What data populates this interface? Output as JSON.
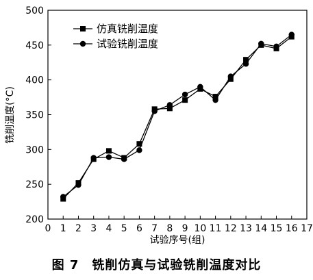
{
  "chart_data": {
    "type": "line",
    "title": "",
    "xlabel": "试验序号(组)",
    "ylabel": "铣削温度(°C)",
    "xlim": [
      0,
      17
    ],
    "ylim": [
      200,
      500
    ],
    "xticks": [
      0,
      1,
      2,
      3,
      4,
      5,
      6,
      7,
      8,
      9,
      10,
      11,
      12,
      13,
      14,
      15,
      16,
      17
    ],
    "yticks": [
      200,
      250,
      300,
      350,
      400,
      450,
      500
    ],
    "legend_position": "top-left",
    "x": [
      1,
      2,
      3,
      4,
      5,
      6,
      7,
      8,
      9,
      10,
      11,
      12,
      13,
      14,
      15,
      16
    ],
    "series": [
      {
        "name": "仿真铣削温度",
        "marker": "square",
        "values": [
          229,
          252,
          286,
          298,
          288,
          308,
          358,
          359,
          371,
          387,
          376,
          401,
          429,
          450,
          445,
          462
        ]
      },
      {
        "name": "试验铣削温度",
        "marker": "circle",
        "values": [
          232,
          249,
          288,
          289,
          286,
          299,
          355,
          364,
          379,
          390,
          371,
          405,
          423,
          452,
          448,
          465
        ]
      }
    ]
  },
  "caption": "图 7　铣削仿真与试验铣削温度对比"
}
